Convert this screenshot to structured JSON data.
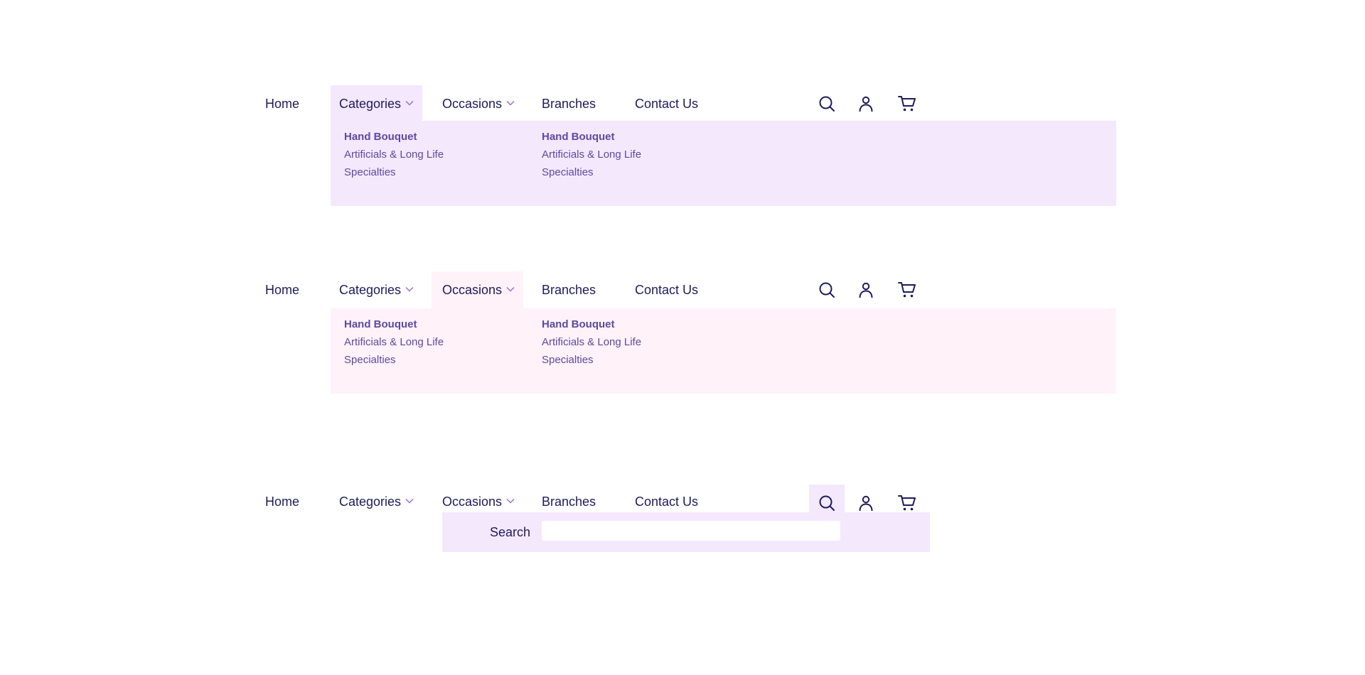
{
  "colors": {
    "text": "#1f1a5c",
    "link": "#5b4a9f",
    "chevron": "#a06cd5",
    "highlight_purple": "#f4e8fd",
    "highlight_pink": "#fff2f8"
  },
  "nav": {
    "home": "Home",
    "categories": "Categories",
    "occasions": "Occasions",
    "branches": "Branches",
    "contact": "Contact Us",
    "icons": [
      "search-icon",
      "user-icon",
      "cart-icon"
    ]
  },
  "dropdown": {
    "columns": [
      {
        "items": [
          "Hand Bouquet",
          "Artificials & Long Life",
          "Specialties"
        ]
      },
      {
        "items": [
          "Hand Bouquet",
          "Artificials & Long Life",
          "Specialties"
        ]
      }
    ]
  },
  "search_panel": {
    "label": "Search",
    "placeholder": ""
  }
}
